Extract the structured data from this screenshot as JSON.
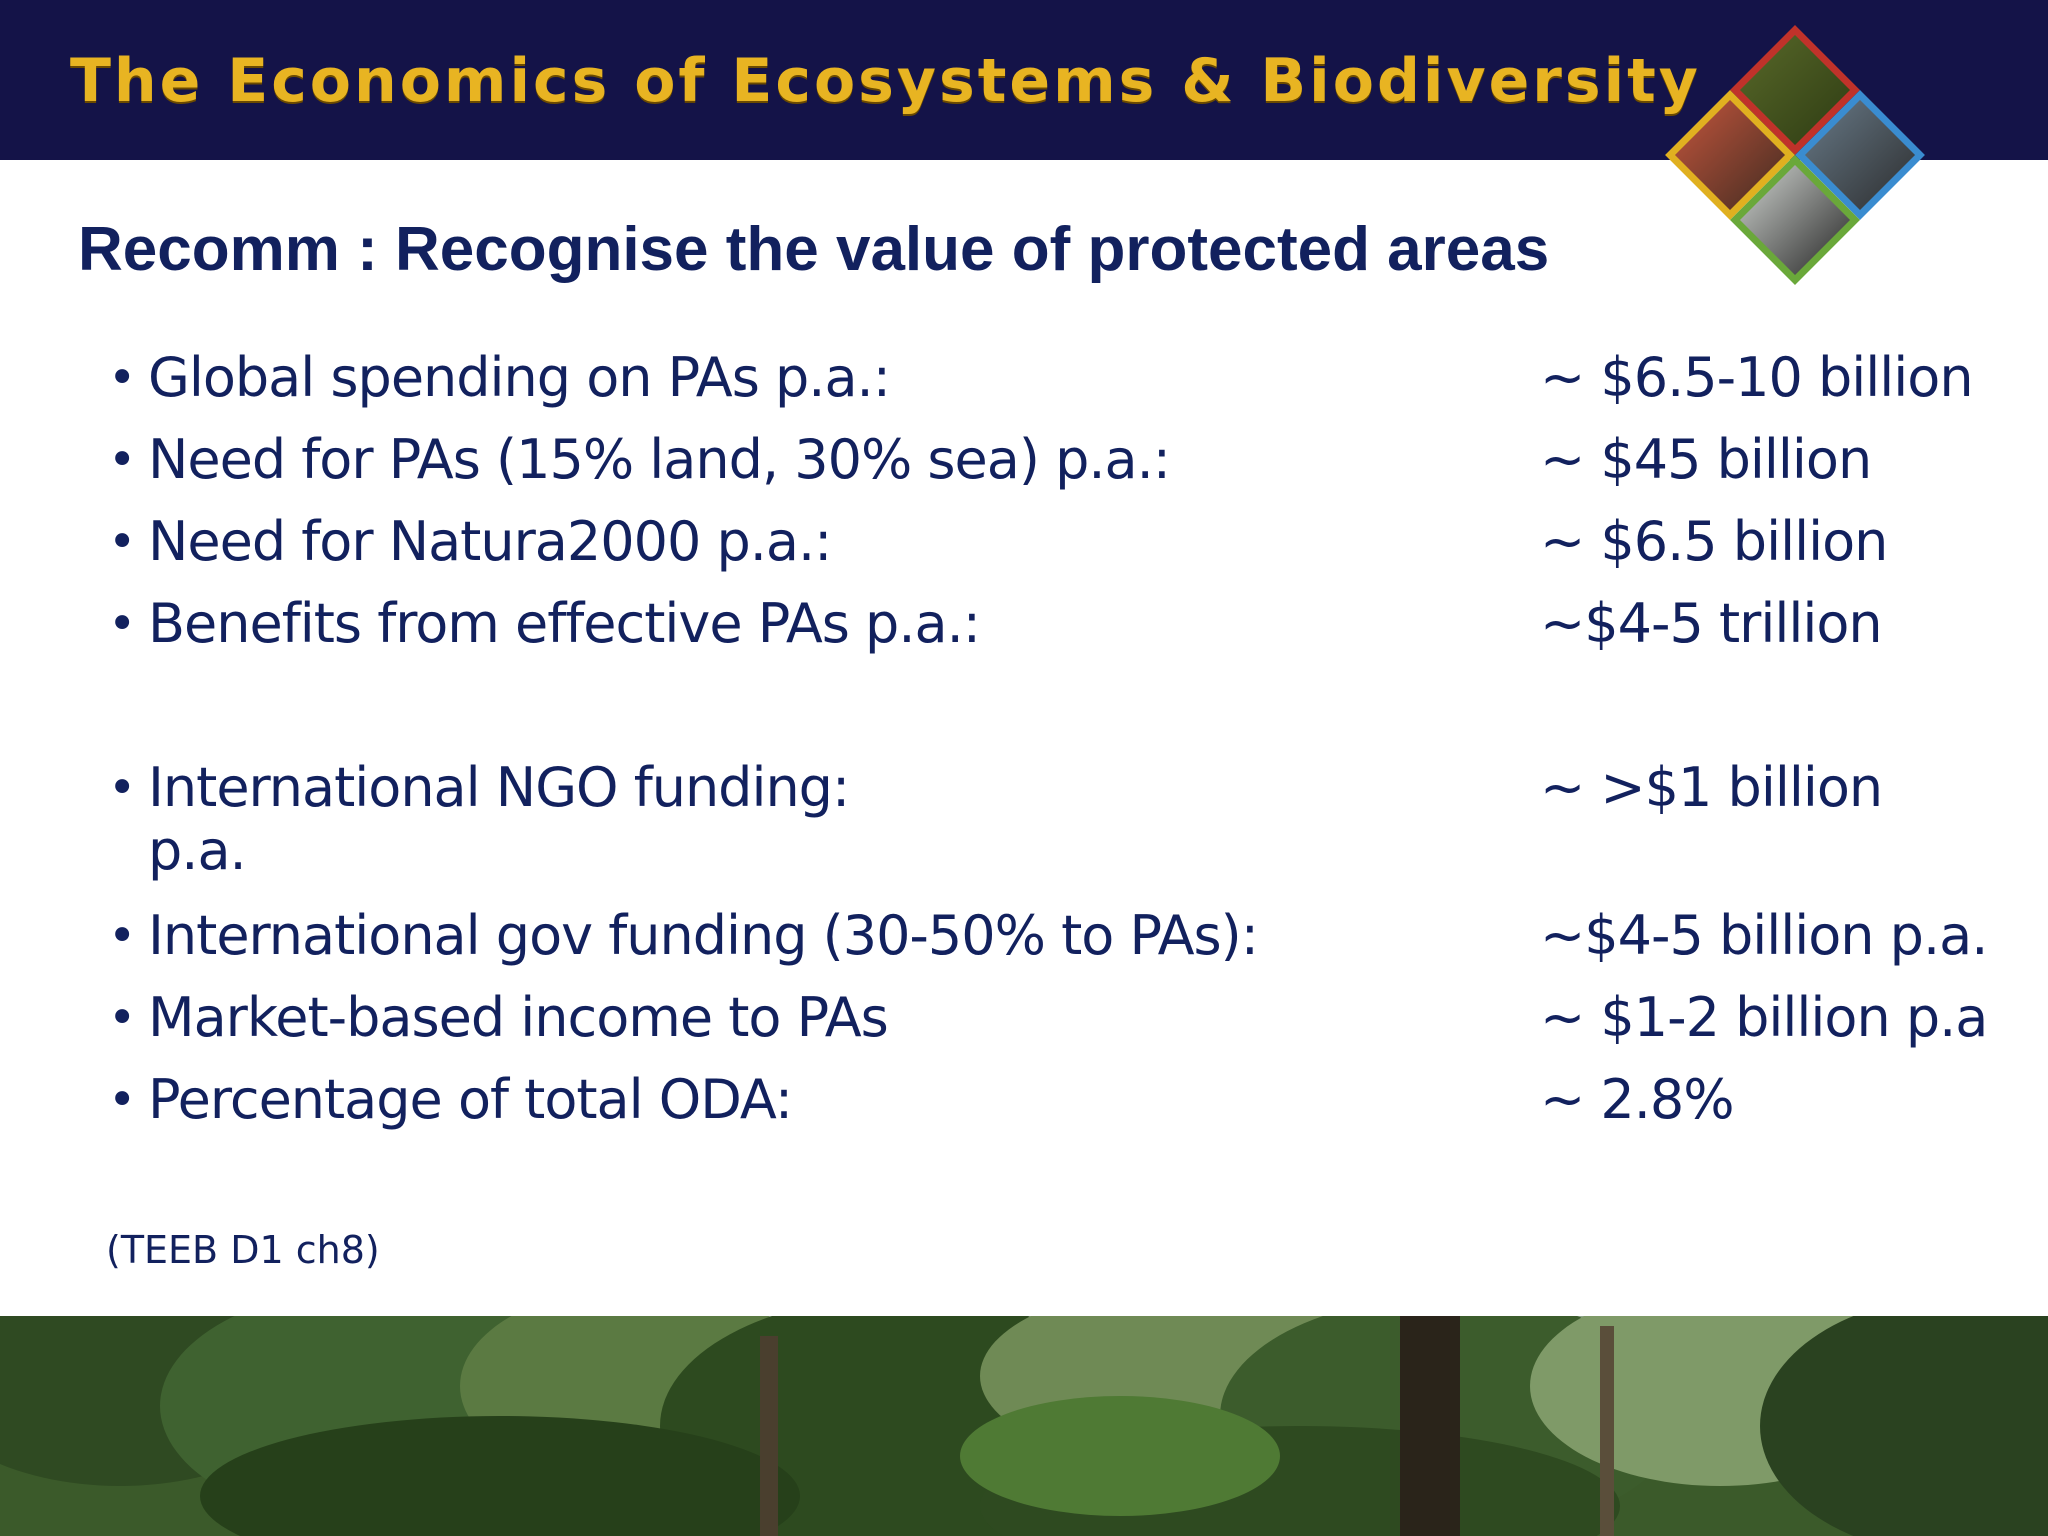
{
  "banner": {
    "title": "The Economics of Ecosystems & Biodiversity"
  },
  "slide": {
    "title": "Recomm : Recognise the value of protected areas"
  },
  "items": [
    {
      "label": "Global spending on PAs p.a.:",
      "value": "~ $6.5-10 billion"
    },
    {
      "label": "Need for PAs (15% land, 30% sea) p.a.:",
      "value": "~ $45 billion"
    },
    {
      "label": "Need for Natura2000 p.a.:",
      "value": "~ $6.5 billion"
    },
    {
      "label": "Benefits from effective PAs p.a.:",
      "value": "~$4-5 trillion"
    },
    {
      "label": "International NGO funding:",
      "label_cont": "p.a.",
      "value": "~ >$1 billion"
    },
    {
      "label": "International gov funding (30-50% to PAs):",
      "value": "~$4-5 billion p.a."
    },
    {
      "label": "Market-based income to PAs",
      "value": "~ $1-2 billion p.a"
    },
    {
      "label": "Percentage of total ODA:",
      "value": "~ 2.8%"
    }
  ],
  "source": "(TEEB D1 ch8)",
  "colors": {
    "banner": "#141348",
    "banner_text": "#e8b422",
    "text": "#12215e"
  },
  "icons": {
    "logo": "teeb-diamond-logo-icon",
    "footer": "forest-photo"
  }
}
